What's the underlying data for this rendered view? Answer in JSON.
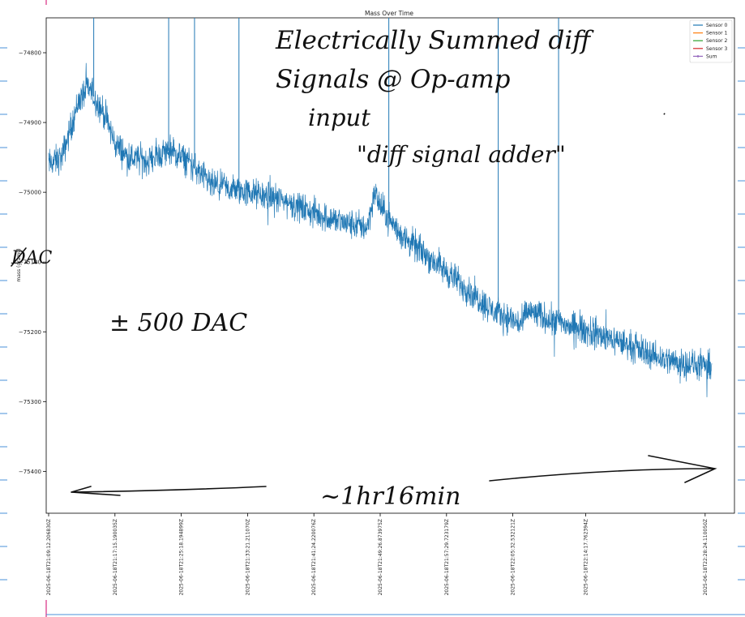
{
  "chart_data": {
    "type": "line",
    "title": "Mass Over Time",
    "ylabel": "mass (grams)",
    "xlabel": "",
    "ylim": [
      -75460,
      -74750
    ],
    "yticks": [
      -74800,
      -74900,
      -75000,
      -75100,
      -75200,
      -75300,
      -75400
    ],
    "ytick_labels": [
      "−74800",
      "−74900",
      "−75000",
      "−75100",
      "−75200",
      "−75300",
      "−75400"
    ],
    "xtick_labels": [
      "2025-06-18T21:09:12.206830Z",
      "2025-06-18T21:17:15.190035Z",
      "2025-06-18T21:25:18.194899Z",
      "2025-06-18T21:33:21.211070Z",
      "2025-06-18T21:41:24.220076Z",
      "2025-06-18T21:49:26.873975Z",
      "2025-06-18T21:57:29.723179Z",
      "2025-06-18T22:05:32.532121Z",
      "2025-06-18T22:14:17.762394Z",
      "2025-06-18T22:28:24.110050Z"
    ],
    "xtick_fractions": [
      0.0,
      0.1,
      0.2,
      0.3,
      0.4,
      0.5,
      0.6,
      0.7,
      0.81,
      0.99
    ],
    "legend": {
      "placement": "top-right",
      "entries": [
        {
          "name": "Sensor 0",
          "color": "#1f77b4"
        },
        {
          "name": "Sensor 1",
          "color": "#ff7f0e"
        },
        {
          "name": "Sensor 2",
          "color": "#2ca02c"
        },
        {
          "name": "Sensor 3",
          "color": "#d62728"
        },
        {
          "name": "Sum",
          "color": "#9467bd"
        }
      ]
    },
    "series": [
      {
        "name": "Sensor 0",
        "color": "#1f77b4",
        "trend_x": [
          0.0,
          0.02,
          0.045,
          0.06,
          0.085,
          0.1,
          0.12,
          0.15,
          0.18,
          0.21,
          0.245,
          0.3,
          0.35,
          0.4,
          0.45,
          0.48,
          0.492,
          0.5,
          0.53,
          0.57,
          0.62,
          0.67,
          0.715,
          0.72,
          0.78,
          0.85,
          0.93,
          0.99
        ],
        "trend_y": [
          -74960,
          -74950,
          -74870,
          -74850,
          -74890,
          -74930,
          -74950,
          -74955,
          -74940,
          -74955,
          -74990,
          -75000,
          -75010,
          -75030,
          -75045,
          -75050,
          -75000,
          -75020,
          -75060,
          -75090,
          -75130,
          -75170,
          -75190,
          -75170,
          -75190,
          -75210,
          -75240,
          -75250
        ],
        "noise_amplitude": 20,
        "spikes_x": [
          0.068,
          0.181,
          0.22,
          0.287,
          0.513,
          0.678,
          0.769
        ]
      }
    ]
  },
  "annotations": {
    "line1": "Electrically Summed diff",
    "line2": "Signals @ Op-amp",
    "line3": "input",
    "line4": "\"diff signal adder\"",
    "dac_label": "DAC",
    "range_note": "± 500 DAC",
    "duration": "~1hr16min"
  },
  "colors": {
    "edge_marks": "#4a90d9",
    "top_left_mark": "#e0559a"
  }
}
